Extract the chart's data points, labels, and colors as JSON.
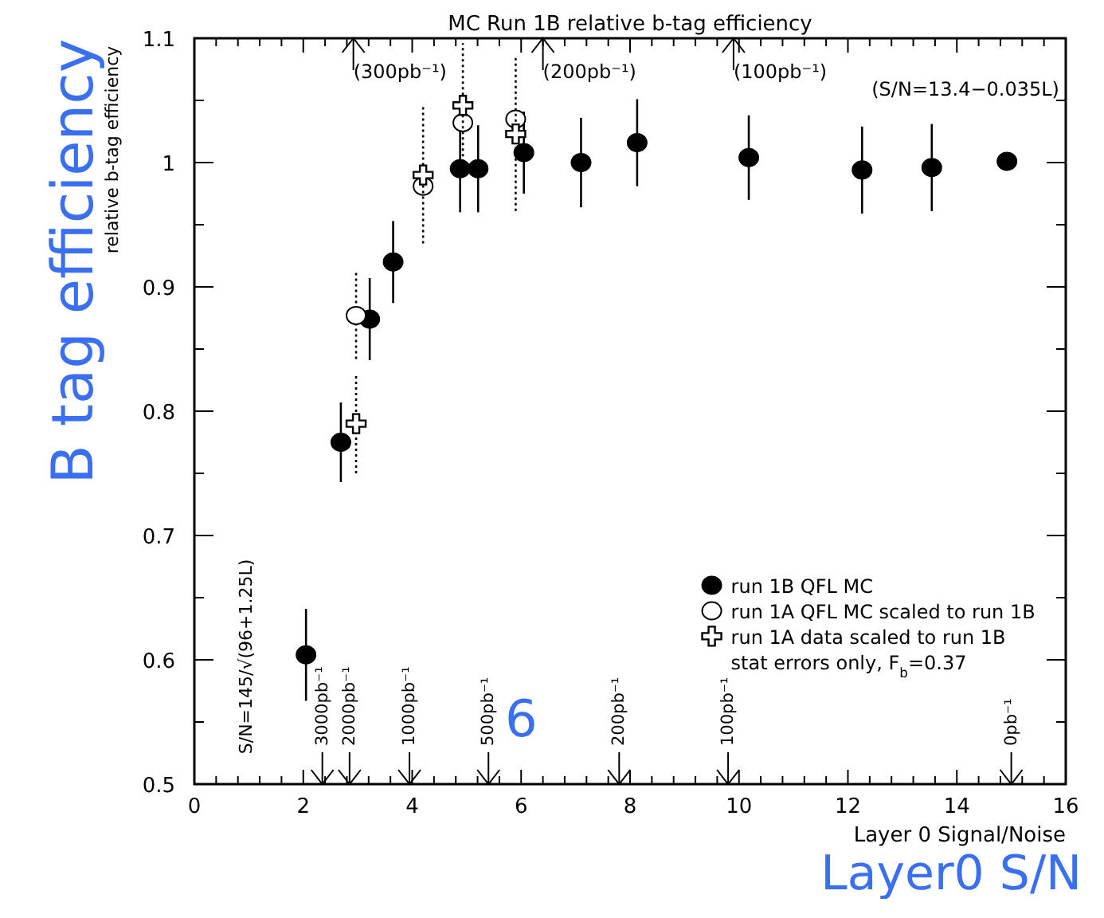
{
  "chart_data": {
    "type": "scatter",
    "title": "MC Run 1B relative b-tag efficiency",
    "xlabel": "Layer 0 Signal/Noise",
    "ylabel": "relative b-tag efficiency",
    "xlim": [
      0,
      16
    ],
    "xticks": [
      0,
      2,
      4,
      6,
      8,
      10,
      12,
      14,
      16
    ],
    "ylim": [
      0.5,
      1.1
    ],
    "yticks": [
      0.5,
      0.6,
      0.7,
      0.8,
      0.9,
      {
        "value": 1,
        "label": "1"
      },
      1.1
    ],
    "legend": "bottom right",
    "grid": false,
    "series": [
      {
        "name": "run 1B QFL MC",
        "color": "#000000",
        "marker": "circle",
        "x": [
          2.05,
          2.69,
          3.22,
          3.65,
          4.88,
          5.21,
          6.05,
          7.1,
          8.13,
          10.18,
          12.26,
          13.54,
          14.92
        ],
        "values": [
          0.604,
          0.775,
          0.874,
          0.92,
          0.995,
          0.995,
          1.008,
          1.0,
          1.016,
          1.004,
          0.994,
          0.996,
          1.001
        ],
        "errors": [
          0.037,
          0.032,
          0.033,
          0.033,
          0.035,
          0.035,
          0.033,
          0.036,
          0.035,
          0.034,
          0.035,
          0.035,
          null
        ]
      },
      {
        "name": "run 1A QFL MC scaled to run 1B",
        "color": "#ffffff",
        "marker": "circle",
        "line_style": "dotted",
        "x": [
          2.97,
          4.2,
          4.93,
          5.9
        ],
        "values": [
          0.877,
          0.981,
          1.032,
          1.035
        ],
        "errors": [
          0.035,
          null,
          null,
          null
        ]
      },
      {
        "name": "run 1A data scaled to run 1B",
        "color": "#ffffff",
        "marker": "cross",
        "line_style": "dotted",
        "x": [
          2.97,
          4.2,
          4.93,
          5.9
        ],
        "values": [
          0.79,
          0.99,
          1.046,
          1.023
        ],
        "errors": [
          0.04,
          0.055,
          0.05,
          0.062
        ]
      }
    ],
    "annotations": [
      "(300pb⁻¹)",
      "(200pb⁻¹)",
      "(100pb⁻¹)",
      "3000pb⁻¹",
      "2000pb⁻¹",
      "1000pb⁻¹",
      "500pb⁻¹",
      "200pb⁻¹",
      "100pb⁻¹",
      "0pb⁻¹",
      "(S/N=13.4−0.035L)",
      "S/N=145/√(96+1.25L)",
      "stat errors only, F$_{b}$=0.37",
      "B tag efficiency",
      "6",
      "Layer0 S/N"
    ]
  }
}
